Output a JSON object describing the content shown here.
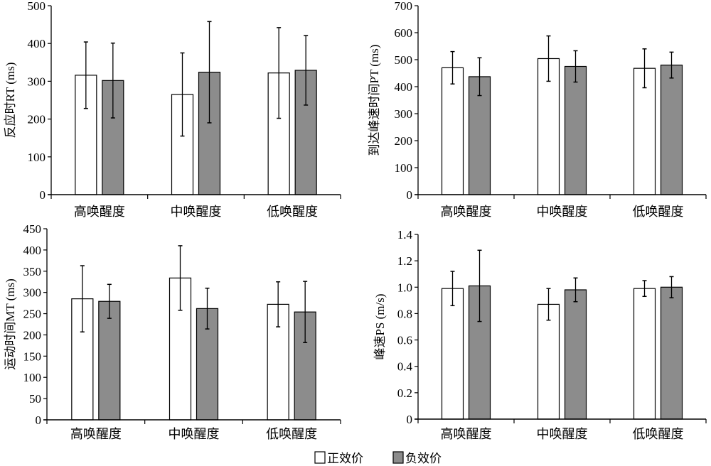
{
  "legend": {
    "positive": "正效价",
    "negative": "负效价"
  },
  "colors": {
    "positive": "#ffffff",
    "negative": "#8c8c8c",
    "stroke": "#000000"
  },
  "chart_data": [
    {
      "type": "bar",
      "ylabel": "反应时RT (ms)",
      "categories": [
        "高唤醒度",
        "中唤醒度",
        "低唤醒度"
      ],
      "ylim": [
        0,
        500
      ],
      "yticks": [
        "0",
        "100",
        "200",
        "300",
        "400",
        "500"
      ],
      "ytick_values": [
        0,
        100,
        200,
        300,
        400,
        500
      ],
      "series": [
        {
          "name": "正效价",
          "values": [
            316,
            265,
            322
          ],
          "errors": [
            88,
            110,
            120
          ]
        },
        {
          "name": "负效价",
          "values": [
            302,
            324,
            329
          ],
          "errors": [
            99,
            134,
            92
          ]
        }
      ]
    },
    {
      "type": "bar",
      "ylabel": "到达峰速时间PT (ms)",
      "categories": [
        "高唤醒度",
        "中唤醒度",
        "低唤醒度"
      ],
      "ylim": [
        0,
        700
      ],
      "yticks": [
        "0",
        "100",
        "200",
        "300",
        "400",
        "500",
        "600",
        "700"
      ],
      "ytick_values": [
        0,
        100,
        200,
        300,
        400,
        500,
        600,
        700
      ],
      "series": [
        {
          "name": "正效价",
          "values": [
            470,
            504,
            468
          ],
          "errors": [
            60,
            84,
            72
          ]
        },
        {
          "name": "负效价",
          "values": [
            437,
            475,
            480
          ],
          "errors": [
            70,
            58,
            48
          ]
        }
      ]
    },
    {
      "type": "bar",
      "ylabel": "运动时间MT (ms)",
      "categories": [
        "高唤醒度",
        "中唤醒度",
        "低唤醒度"
      ],
      "ylim": [
        0,
        450
      ],
      "yticks": [
        "0",
        "50",
        "100",
        "150",
        "200",
        "250",
        "300",
        "350",
        "400",
        "450"
      ],
      "ytick_values": [
        0,
        50,
        100,
        150,
        200,
        250,
        300,
        350,
        400,
        450
      ],
      "series": [
        {
          "name": "正效价",
          "values": [
            285,
            334,
            272
          ],
          "errors": [
            78,
            76,
            53
          ]
        },
        {
          "name": "负效价",
          "values": [
            279,
            262,
            254
          ],
          "errors": [
            40,
            48,
            72
          ]
        }
      ]
    },
    {
      "type": "bar",
      "ylabel": "峰速PS (m/s)",
      "categories": [
        "高唤醒度",
        "中唤醒度",
        "低唤醒度"
      ],
      "ylim": [
        0,
        1.4
      ],
      "yticks": [
        "0",
        "0.2",
        "0.4",
        "0.6",
        "0.8",
        "1.0",
        "1.2",
        "1.4"
      ],
      "ytick_values": [
        0,
        0.2,
        0.4,
        0.6,
        0.8,
        1.0,
        1.2,
        1.4
      ],
      "series": [
        {
          "name": "正效价",
          "values": [
            0.99,
            0.87,
            0.99
          ],
          "errors": [
            0.13,
            0.12,
            0.06
          ]
        },
        {
          "name": "负效价",
          "values": [
            1.01,
            0.98,
            1.0
          ],
          "errors": [
            0.27,
            0.09,
            0.08
          ]
        }
      ]
    }
  ]
}
